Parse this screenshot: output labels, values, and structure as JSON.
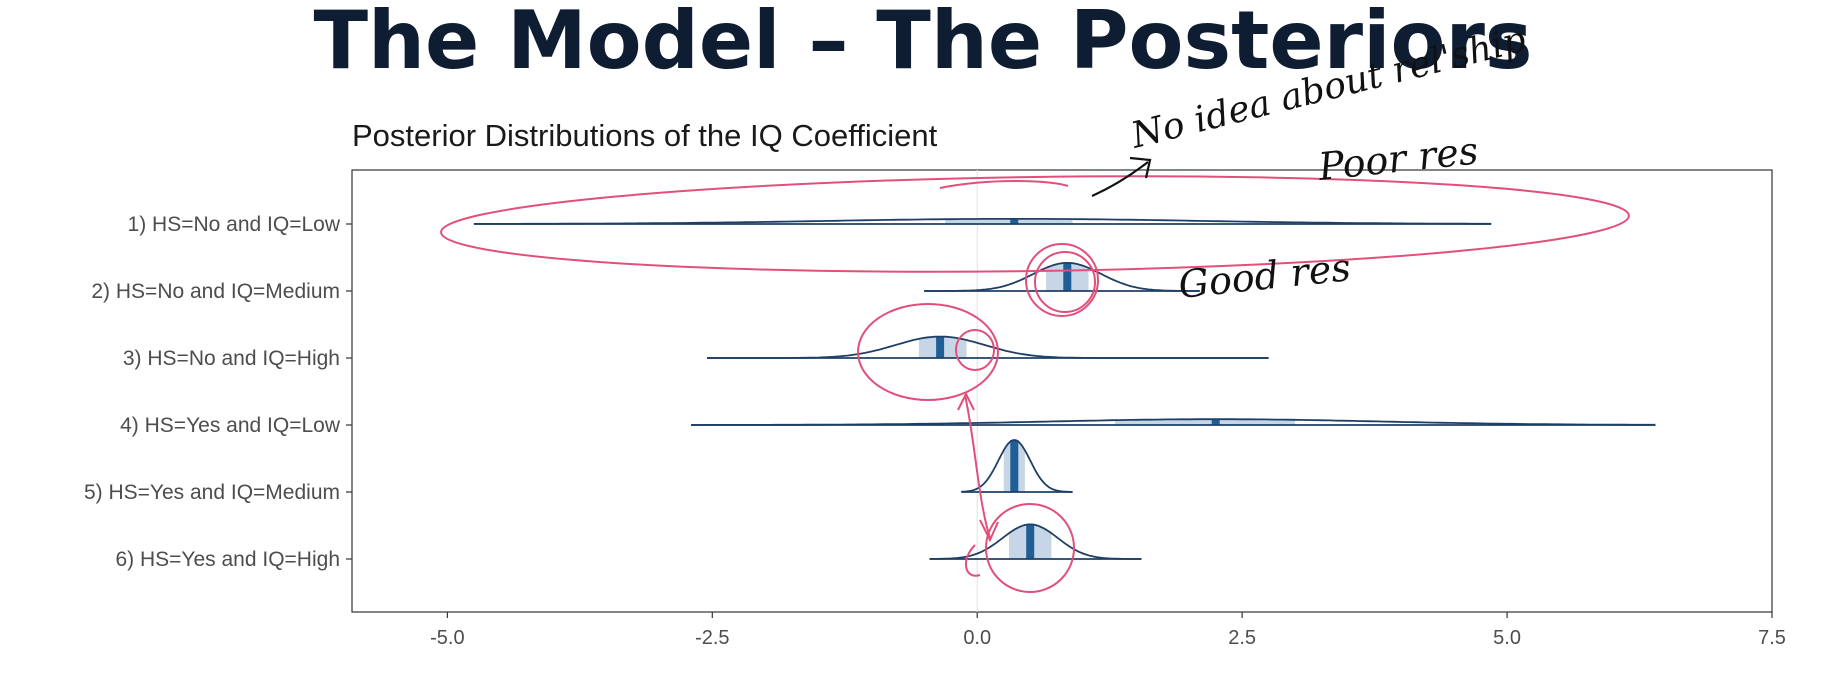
{
  "slide": {
    "title": "The Model – The Posteriors"
  },
  "annotations": {
    "handwritten_1": "No idea about rel'ship",
    "handwritten_2": "Poor res",
    "handwritten_3": "Good res"
  },
  "chart_data": {
    "type": "ridgeline",
    "title": "Posterior Distributions of the IQ Coefficient",
    "xlim": [
      -5.9,
      7.5
    ],
    "x_ticks": [
      -5.0,
      -2.5,
      0.0,
      2.5,
      5.0,
      7.5
    ],
    "x_tick_labels": [
      "-5.0",
      "-2.5",
      "0.0",
      "2.5",
      "5.0",
      "7.5"
    ],
    "zero_line": 0.0,
    "grid": false,
    "colors": {
      "curve": "#1f3f66",
      "median": "#1f5f96",
      "interval": "#c7d6e6",
      "annotation": "#e0507a"
    },
    "series": [
      {
        "label": "1) HS=No and IQ=Low",
        "median": 0.35,
        "sd": 1.75,
        "inner": [
          -0.3,
          0.9
        ],
        "range": [
          -4.75,
          4.85
        ]
      },
      {
        "label": "2) HS=No and IQ=Medium",
        "median": 0.85,
        "sd": 0.32,
        "inner": [
          0.65,
          1.05
        ],
        "range": [
          -0.5,
          2.1
        ]
      },
      {
        "label": "3) HS=No and IQ=High",
        "median": -0.35,
        "sd": 0.42,
        "inner": [
          -0.55,
          -0.1
        ],
        "range": [
          -2.55,
          2.75
        ]
      },
      {
        "label": "4) HS=Yes and IQ=Low",
        "median": 2.25,
        "sd": 1.55,
        "inner": [
          1.3,
          3.0
        ],
        "range": [
          -2.7,
          6.4
        ]
      },
      {
        "label": "5) HS=Yes and IQ=Medium",
        "median": 0.35,
        "sd": 0.15,
        "inner": [
          0.25,
          0.45
        ],
        "range": [
          -0.15,
          0.9
        ]
      },
      {
        "label": "6) HS=Yes and IQ=High",
        "median": 0.5,
        "sd": 0.26,
        "inner": [
          0.3,
          0.7
        ],
        "range": [
          -0.45,
          1.55
        ]
      }
    ]
  }
}
